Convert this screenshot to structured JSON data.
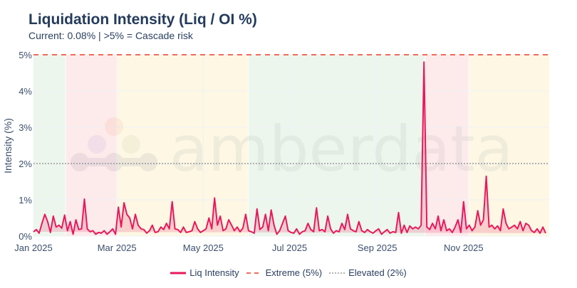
{
  "header": {
    "title": "Liquidation Intensity (Liq / OI %)",
    "subtitle": "Current: 0.08% | >5% = Cascade risk"
  },
  "watermark": {
    "text": "amberdata"
  },
  "legend": {
    "items": [
      {
        "label": "Liq Intensity",
        "style": "solid",
        "color": "#e8195c"
      },
      {
        "label": "Extreme (5%)",
        "style": "dashed",
        "color": "#f26a5a"
      },
      {
        "label": "Elevated (2%)",
        "style": "dotted",
        "color": "#9a9a9a"
      }
    ]
  },
  "colors": {
    "line": "#e8195c",
    "fill": "rgba(232,25,92,0.18)",
    "extreme": "#f26a5a",
    "elevated": "#8a8a8a",
    "band_green": "#edf6ec",
    "band_red": "#fdeaea",
    "band_yellow": "#fdf7e4",
    "grid": "#eef1f6"
  },
  "chart_data": {
    "type": "area",
    "title": "Liquidation Intensity (Liq / OI %)",
    "subtitle": "Current: 0.08% | >5% = Cascade risk",
    "xlabel": "",
    "ylabel": "Intensity (%)",
    "ylim": [
      0,
      5
    ],
    "yticks": [
      "0%",
      "1%",
      "2%",
      "3%",
      "4%",
      "5%"
    ],
    "xticks": [
      "Jan 2025",
      "Mar 2025",
      "May 2025",
      "Jul 2025",
      "Sep 2025",
      "Nov 2025"
    ],
    "xrange": [
      "2025-01-01",
      "2025-12-31"
    ],
    "grid": true,
    "legend_position": "bottom",
    "reference_lines": [
      {
        "name": "Extreme (5%)",
        "y": 5,
        "style": "dashed"
      },
      {
        "name": "Elevated (2%)",
        "y": 2,
        "style": "dotted"
      }
    ],
    "regime_bands": [
      {
        "start": "2025-01-01",
        "end": "2025-01-23",
        "regime": "green"
      },
      {
        "start": "2025-01-24",
        "end": "2025-02-28",
        "regime": "red"
      },
      {
        "start": "2025-03-01",
        "end": "2025-06-01",
        "regime": "yellow"
      },
      {
        "start": "2025-06-02",
        "end": "2025-10-04",
        "regime": "green"
      },
      {
        "start": "2025-10-05",
        "end": "2025-11-04",
        "regime": "red"
      },
      {
        "start": "2025-11-05",
        "end": "2025-12-31",
        "regime": "yellow"
      }
    ],
    "series": [
      {
        "name": "Liq Intensity",
        "note": "daily values approx. every ~2 days, in %",
        "x_day_of_year": [
          0,
          2,
          4,
          6,
          8,
          10,
          12,
          14,
          16,
          18,
          20,
          22,
          24,
          26,
          28,
          30,
          32,
          34,
          36,
          38,
          40,
          42,
          44,
          46,
          48,
          50,
          52,
          54,
          56,
          58,
          60,
          62,
          64,
          66,
          68,
          70,
          72,
          74,
          76,
          78,
          80,
          82,
          84,
          86,
          88,
          90,
          92,
          94,
          96,
          98,
          100,
          102,
          104,
          106,
          108,
          110,
          112,
          114,
          116,
          118,
          120,
          122,
          124,
          126,
          128,
          130,
          132,
          134,
          136,
          138,
          140,
          142,
          144,
          146,
          148,
          150,
          152,
          154,
          156,
          158,
          160,
          162,
          164,
          166,
          168,
          170,
          172,
          174,
          176,
          178,
          180,
          182,
          184,
          186,
          188,
          190,
          192,
          194,
          196,
          198,
          200,
          202,
          204,
          206,
          208,
          210,
          212,
          214,
          216,
          218,
          220,
          222,
          224,
          226,
          228,
          230,
          232,
          234,
          236,
          238,
          240,
          242,
          244,
          246,
          248,
          250,
          252,
          254,
          256,
          258,
          260,
          262,
          264,
          266,
          268,
          270,
          272,
          274,
          276,
          278,
          280,
          282,
          284,
          286,
          288,
          290,
          292,
          294,
          296,
          298,
          300,
          302,
          304,
          306,
          308,
          310,
          312,
          314,
          316,
          318,
          320,
          322,
          324,
          326,
          328,
          330,
          332,
          334,
          336,
          338,
          340,
          342,
          344,
          346,
          348,
          350,
          352,
          354,
          356,
          358,
          360,
          362,
          364
        ],
        "values": [
          0.12,
          0.18,
          0.08,
          0.35,
          0.6,
          0.4,
          0.1,
          0.55,
          0.25,
          0.3,
          0.22,
          0.58,
          0.15,
          0.4,
          0.05,
          0.45,
          0.18,
          0.2,
          1.02,
          0.2,
          0.12,
          0.15,
          0.05,
          0.1,
          0.08,
          0.15,
          0.05,
          0.12,
          0.2,
          0.05,
          0.8,
          0.25,
          0.92,
          0.6,
          0.5,
          0.2,
          0.6,
          0.3,
          0.2,
          0.18,
          0.08,
          0.15,
          0.3,
          0.1,
          0.12,
          0.25,
          0.18,
          0.35,
          0.2,
          0.95,
          0.2,
          0.18,
          0.1,
          0.25,
          0.1,
          0.12,
          0.15,
          0.4,
          0.2,
          0.1,
          0.15,
          0.2,
          0.5,
          0.2,
          1.05,
          0.3,
          0.55,
          0.15,
          0.2,
          0.45,
          0.3,
          0.15,
          0.25,
          0.12,
          0.22,
          0.6,
          0.15,
          0.12,
          0.08,
          0.75,
          0.18,
          0.25,
          0.6,
          0.15,
          0.72,
          0.3,
          0.05,
          0.15,
          0.35,
          0.55,
          0.15,
          0.1,
          0.08,
          0.2,
          0.05,
          0.12,
          0.15,
          0.35,
          0.18,
          0.12,
          0.78,
          0.15,
          0.18,
          0.12,
          0.55,
          0.2,
          0.08,
          0.15,
          0.12,
          0.35,
          0.18,
          0.6,
          0.2,
          0.15,
          0.12,
          0.4,
          0.15,
          0.1,
          0.18,
          0.12,
          0.08,
          0.15,
          0.2,
          0.05,
          0.12,
          0.18,
          0.08,
          0.12,
          0.1,
          0.65,
          0.08,
          0.3,
          0.1,
          0.28,
          0.2,
          0.25,
          0.2,
          0.3,
          4.8,
          0.25,
          0.18,
          0.35,
          0.2,
          0.55,
          0.15,
          0.45,
          0.15,
          0.2,
          0.1,
          0.25,
          0.45,
          0.1,
          0.95,
          0.2,
          0.3,
          0.15,
          0.25,
          0.7,
          0.3,
          0.45,
          1.65,
          0.25,
          0.3,
          0.2,
          0.28,
          0.15,
          0.75,
          0.35,
          0.2,
          0.25,
          0.3,
          0.2,
          0.4,
          0.15,
          0.35,
          0.3,
          0.15,
          0.1,
          0.2,
          0.08,
          0.25,
          0.08
        ]
      }
    ],
    "current_value": 0.08
  },
  "axes": {
    "y_title": "Intensity (%)",
    "y_ticks": [
      "0%",
      "1%",
      "2%",
      "3%",
      "4%",
      "5%"
    ],
    "x_ticks": [
      "Jan 2025",
      "Mar 2025",
      "May 2025",
      "Jul 2025",
      "Sep 2025",
      "Nov 2025"
    ]
  }
}
